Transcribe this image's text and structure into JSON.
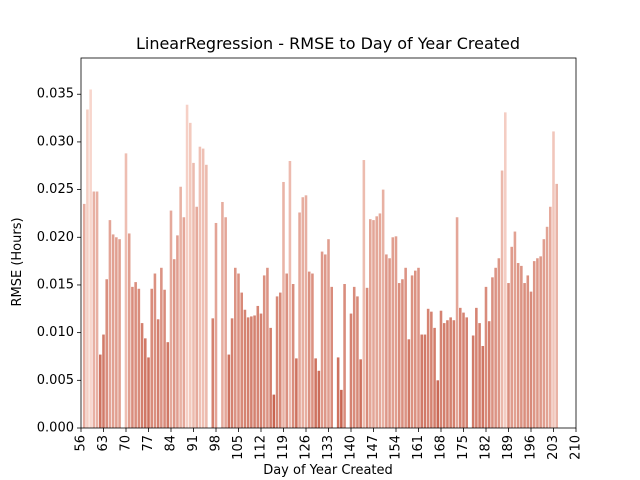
{
  "chart_data": {
    "type": "bar",
    "title": "LinearRegression - RMSE to Day of Year Created",
    "xlabel": "Day of Year Created",
    "ylabel": "RMSE (Hours)",
    "xlim": [
      56,
      210
    ],
    "ylim": [
      0,
      0.0388
    ],
    "x_ticks": [
      56,
      63,
      70,
      77,
      84,
      91,
      98,
      105,
      112,
      119,
      126,
      133,
      140,
      147,
      154,
      161,
      168,
      175,
      182,
      189,
      196,
      203,
      210
    ],
    "y_ticks": [
      0.0,
      0.005,
      0.01,
      0.015,
      0.02,
      0.025,
      0.03,
      0.035
    ],
    "y_tick_labels": [
      "0.000",
      "0.005",
      "0.010",
      "0.015",
      "0.020",
      "0.025",
      "0.030",
      "0.035"
    ],
    "grid": false,
    "bar_color_low": "#c86450",
    "bar_color_high": "#f8d6cc",
    "days": [
      57,
      58,
      59,
      60,
      61,
      62,
      63,
      64,
      65,
      66,
      67,
      68,
      69,
      70,
      71,
      72,
      73,
      74,
      75,
      76,
      77,
      78,
      79,
      80,
      81,
      82,
      83,
      84,
      85,
      86,
      87,
      88,
      89,
      90,
      91,
      92,
      93,
      94,
      95,
      96,
      97,
      98,
      99,
      100,
      101,
      102,
      103,
      104,
      105,
      106,
      107,
      108,
      109,
      110,
      111,
      112,
      113,
      114,
      115,
      116,
      117,
      118,
      119,
      120,
      121,
      122,
      123,
      124,
      125,
      126,
      127,
      128,
      129,
      130,
      131,
      132,
      133,
      134,
      135,
      136,
      137,
      138,
      139,
      140,
      141,
      142,
      143,
      144,
      145,
      146,
      147,
      148,
      149,
      150,
      151,
      152,
      153,
      154,
      155,
      156,
      157,
      158,
      159,
      160,
      161,
      162,
      163,
      164,
      165,
      166,
      167,
      168,
      169,
      170,
      171,
      172,
      173,
      174,
      175,
      176,
      177,
      178,
      179,
      180,
      181,
      182,
      183,
      184,
      185,
      186,
      187,
      188,
      189,
      190,
      191,
      192,
      193,
      194,
      195,
      196,
      197,
      198,
      199,
      200,
      201,
      202,
      203,
      204
    ],
    "values": [
      0.0235,
      0.0334,
      0.0355,
      0.0248,
      0.0248,
      0.0077,
      0.0098,
      0.0156,
      0.0218,
      0.0203,
      0.02,
      0.0198,
      0.0,
      0.0288,
      0.0204,
      0.0148,
      0.0153,
      0.0146,
      0.011,
      0.0094,
      0.0074,
      0.0146,
      0.0162,
      0.0114,
      0.0168,
      0.0145,
      0.009,
      0.0228,
      0.0177,
      0.0202,
      0.0253,
      0.0221,
      0.0339,
      0.032,
      0.0278,
      0.0232,
      0.0295,
      0.0293,
      0.0276,
      0.0,
      0.0115,
      0.0215,
      0.0,
      0.0237,
      0.0221,
      0.0077,
      0.0115,
      0.0168,
      0.0162,
      0.0142,
      0.0124,
      0.0116,
      0.0117,
      0.0118,
      0.0128,
      0.012,
      0.016,
      0.0168,
      0.0105,
      0.0035,
      0.0138,
      0.0142,
      0.0258,
      0.0162,
      0.028,
      0.0151,
      0.0073,
      0.0226,
      0.0242,
      0.0244,
      0.0164,
      0.0162,
      0.0073,
      0.006,
      0.0185,
      0.0182,
      0.0198,
      0.0148,
      0.0,
      0.0074,
      0.004,
      0.0151,
      0.0,
      0.012,
      0.0148,
      0.0138,
      0.0072,
      0.0281,
      0.0147,
      0.0219,
      0.0218,
      0.0222,
      0.0225,
      0.025,
      0.0182,
      0.0178,
      0.02,
      0.0201,
      0.0152,
      0.0156,
      0.0168,
      0.0093,
      0.016,
      0.0165,
      0.0168,
      0.0098,
      0.0098,
      0.0125,
      0.0122,
      0.0105,
      0.005,
      0.0123,
      0.011,
      0.0113,
      0.0116,
      0.0113,
      0.0221,
      0.0126,
      0.0121,
      0.0116,
      0.0,
      0.0097,
      0.0126,
      0.011,
      0.0086,
      0.0148,
      0.0112,
      0.0158,
      0.0168,
      0.0178,
      0.027,
      0.0331,
      0.0152,
      0.019,
      0.0206,
      0.0173,
      0.017,
      0.0152,
      0.016,
      0.0143,
      0.0175,
      0.0178,
      0.018,
      0.0198,
      0.0211,
      0.0232,
      0.0311,
      0.0256
    ]
  }
}
